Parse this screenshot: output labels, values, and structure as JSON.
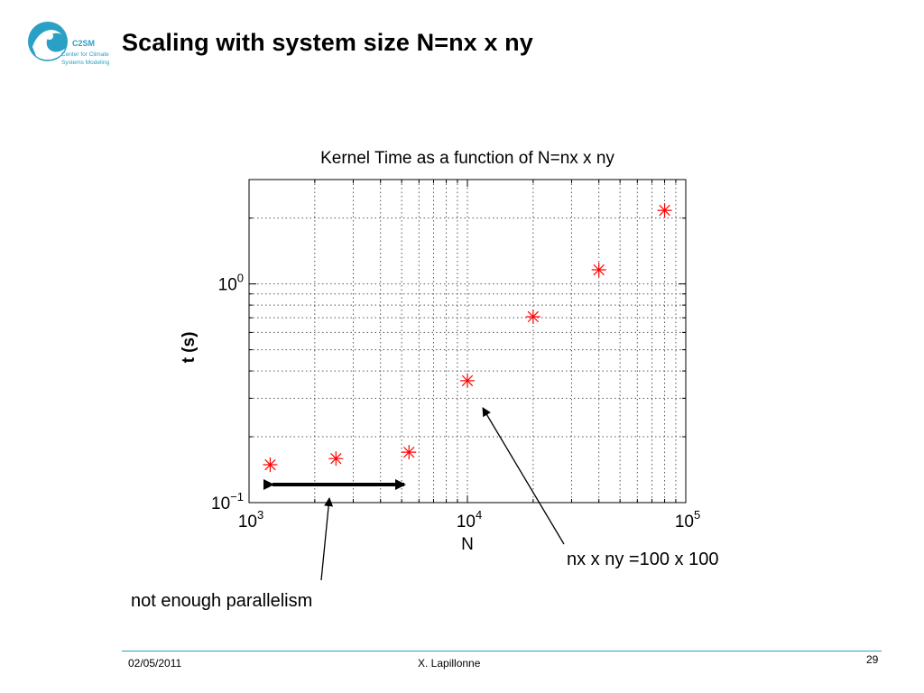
{
  "slide": {
    "title": "Scaling with system size N=nx x ny",
    "logo": {
      "icon": "c2sm-wave-logo",
      "brand_lines": [
        "C2SM",
        "Center for Climate",
        "Systems Modeling"
      ]
    },
    "annotations": {
      "parallelism_text": "not enough parallelism",
      "point_text": "nx x ny =100 x 100"
    },
    "footer": {
      "date": "02/05/2011",
      "author": "X. Lapillonne",
      "page_number": "29"
    },
    "accent_color": "#2aa0c4"
  },
  "chart_data": {
    "type": "scatter",
    "title": "Kernel Time as a function of N=nx x ny",
    "xlabel": "N",
    "ylabel": "t (s)",
    "xscale": "log",
    "yscale": "log",
    "xlim": [
      1000,
      100000
    ],
    "ylim": [
      0.1,
      3
    ],
    "grid": true,
    "marker": "asterisk",
    "marker_color": "#ff0000",
    "x_ticks": [
      {
        "value": 1000,
        "base": "10",
        "exp": "3"
      },
      {
        "value": 10000,
        "base": "10",
        "exp": "4"
      },
      {
        "value": 100000,
        "base": "10",
        "exp": "5"
      }
    ],
    "y_ticks": [
      {
        "value": 0.1,
        "base": "10",
        "exp": "−1"
      },
      {
        "value": 1,
        "base": "10",
        "exp": "0"
      }
    ],
    "points": [
      {
        "x": 1250,
        "y": 0.149
      },
      {
        "x": 2500,
        "y": 0.159
      },
      {
        "x": 5400,
        "y": 0.17
      },
      {
        "x": 10000,
        "y": 0.361
      },
      {
        "x": 20000,
        "y": 0.708
      },
      {
        "x": 40000,
        "y": 1.16
      },
      {
        "x": 80000,
        "y": 2.17
      }
    ]
  }
}
